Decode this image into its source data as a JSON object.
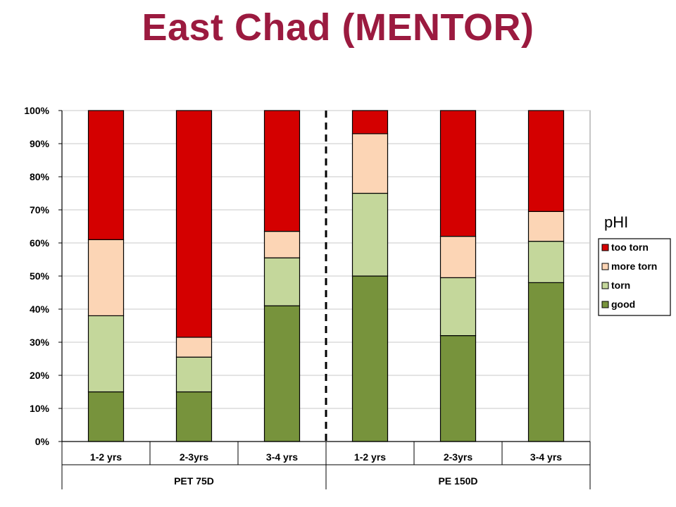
{
  "title": "East Chad (MENTOR)",
  "chart_data": {
    "type": "bar",
    "stacked": true,
    "percent_axis": true,
    "ylim": [
      0,
      100
    ],
    "yticks": [
      "0%",
      "10%",
      "20%",
      "30%",
      "40%",
      "50%",
      "60%",
      "70%",
      "80%",
      "90%",
      "100%"
    ],
    "categories": [
      "1-2 yrs",
      "2-3yrs",
      "3-4 yrs",
      "1-2 yrs",
      "2-3yrs",
      "3-4 yrs"
    ],
    "groups": [
      {
        "label": "PET 75D",
        "count": 3
      },
      {
        "label": "PE 150D",
        "count": 3
      }
    ],
    "series": [
      {
        "name": "good",
        "color": "#77933c",
        "values": [
          15,
          15,
          41,
          50,
          32,
          48
        ]
      },
      {
        "name": "torn",
        "color": "#c4d79b",
        "values": [
          23,
          10.5,
          14.5,
          25,
          17.5,
          12.5
        ]
      },
      {
        "name": "more torn",
        "color": "#fcd5b5",
        "values": [
          23,
          6,
          8,
          18,
          12.5,
          9
        ]
      },
      {
        "name": "too torn",
        "color": "#d40000",
        "values": [
          39,
          68.5,
          36.5,
          7,
          38,
          30.5
        ]
      }
    ],
    "legend_title": "pHI",
    "legend_position": "right",
    "legend_order": [
      "too torn",
      "more torn",
      "torn",
      "good"
    ],
    "gridlines": true,
    "group_separator": "dashed"
  }
}
